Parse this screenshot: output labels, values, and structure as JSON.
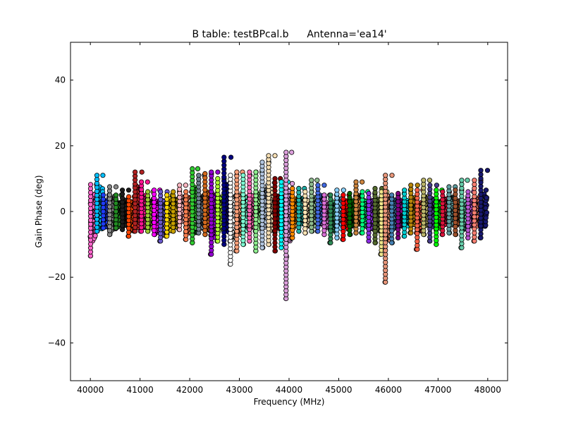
{
  "chart_data": {
    "type": "scatter",
    "title": "B table: testBPcal.b",
    "subtitle": "Antenna='ea14'",
    "xlabel": "Frequency (MHz)",
    "ylabel": "Gain Phase (deg)",
    "xlim": [
      39600,
      48400
    ],
    "ylim": [
      -51.5,
      51.5
    ],
    "grid": false,
    "xticks": [
      40000,
      41000,
      42000,
      43000,
      44000,
      45000,
      46000,
      47000,
      48000
    ],
    "xtick_labels": [
      "40000",
      "41000",
      "42000",
      "43000",
      "44000",
      "45000",
      "46000",
      "47000",
      "48000"
    ],
    "yticks": [
      -40,
      -20,
      0,
      20,
      40
    ],
    "ytick_labels": [
      "−40",
      "−20",
      "0",
      "20",
      "40"
    ],
    "marker": "circle",
    "marker_edge_color": "#000000",
    "spw_start": 40000,
    "spw_width": 128,
    "spw_count": 63,
    "channels_per_spw": 64,
    "series_colors": [
      "#ff66cc",
      "#00bfff",
      "#1e3cff",
      "#8b8b8b",
      "#228b22",
      "#1c1c1c",
      "#ff4500",
      "#b22222",
      "#ff1493",
      "#9acd32",
      "#ff00ff",
      "#6a5acd",
      "#ffd700",
      "#c8a000",
      "#ffb6c1",
      "#ff7f50",
      "#32cd32",
      "#708090",
      "#d2691e",
      "#9400d3",
      "#adff2f",
      "#000080",
      "#ffffff",
      "#ffa07a",
      "#7fffd4",
      "#ff69b4",
      "#90ee90",
      "#b0c4de",
      "#f5deb3",
      "#800000",
      "#00ffff",
      "#dda0dd",
      "#ff8c00",
      "#20b2aa",
      "#ffe4b5",
      "#8fbc8f",
      "#4169e1",
      "#da70d6",
      "#2e8b57",
      "#87cefa",
      "#ff0000",
      "#006400",
      "#cd853f",
      "#00ff7f",
      "#8a2be2",
      "#556b2f",
      "#f0e68c",
      "#e9967a",
      "#4682b4",
      "#800080",
      "#00ced1",
      "#b8860b",
      "#ff6347",
      "#bdb76b",
      "#483d8b",
      "#00ff00",
      "#dc143c",
      "#5f9ea0",
      "#a0522d",
      "#66cdaa",
      "#ba55d3",
      "#fa8072",
      "#191970"
    ],
    "series": [
      {
        "x_center": 40064,
        "y_center": -1.8,
        "y_spread": 7.2,
        "peak_low": -13.5,
        "peak_high": 8.2
      },
      {
        "x_center": 40192,
        "y_center": 1.0,
        "y_spread": 6.5,
        "peak_low": -6.0,
        "peak_high": 11.0
      },
      {
        "x_center": 40320,
        "y_center": -0.5,
        "y_spread": 4.5,
        "peak_low": -5.0,
        "peak_high": 5.0
      },
      {
        "x_center": 40448,
        "y_center": -0.8,
        "y_spread": 5.5,
        "peak_low": -7.0,
        "peak_high": 7.5
      },
      {
        "x_center": 40576,
        "y_center": -1.0,
        "y_spread": 3.8,
        "peak_low": -5.0,
        "peak_high": 5.0
      },
      {
        "x_center": 40704,
        "y_center": -0.5,
        "y_spread": 4.0,
        "peak_low": -5.5,
        "peak_high": 6.5
      },
      {
        "x_center": 40832,
        "y_center": -1.5,
        "y_spread": 4.5,
        "peak_low": -7.5,
        "peak_high": 4.5
      },
      {
        "x_center": 40960,
        "y_center": 1.5,
        "y_spread": 6.5,
        "peak_low": -6.0,
        "peak_high": 12.0
      },
      {
        "x_center": 41088,
        "y_center": 0.0,
        "y_spread": 5.0,
        "peak_low": -6.0,
        "peak_high": 9.0
      },
      {
        "x_center": 41216,
        "y_center": -0.5,
        "y_spread": 4.5,
        "peak_low": -6.0,
        "peak_high": 6.0
      },
      {
        "x_center": 41344,
        "y_center": -1.5,
        "y_spread": 5.0,
        "peak_low": -7.0,
        "peak_high": 6.5
      },
      {
        "x_center": 41472,
        "y_center": -2.0,
        "y_spread": 5.5,
        "peak_low": -9.0,
        "peak_high": 6.0
      },
      {
        "x_center": 41600,
        "y_center": -1.0,
        "y_spread": 5.0,
        "peak_low": -7.5,
        "peak_high": 5.0
      },
      {
        "x_center": 41728,
        "y_center": -0.5,
        "y_spread": 4.5,
        "peak_low": -6.0,
        "peak_high": 6.0
      },
      {
        "x_center": 41856,
        "y_center": 0.5,
        "y_spread": 4.0,
        "peak_low": -5.5,
        "peak_high": 8.0
      },
      {
        "x_center": 41984,
        "y_center": -1.0,
        "y_spread": 5.5,
        "peak_low": -8.5,
        "peak_high": 6.0
      },
      {
        "x_center": 42112,
        "y_center": 0.5,
        "y_spread": 7.0,
        "peak_low": -9.5,
        "peak_high": 13.0
      },
      {
        "x_center": 42240,
        "y_center": -0.5,
        "y_spread": 5.5,
        "peak_low": -6.5,
        "peak_high": 11.0
      },
      {
        "x_center": 42368,
        "y_center": 0.0,
        "y_spread": 6.0,
        "peak_low": -7.0,
        "peak_high": 11.5
      },
      {
        "x_center": 42496,
        "y_center": -1.5,
        "y_spread": 6.5,
        "peak_low": -13.0,
        "peak_high": 12.0
      },
      {
        "x_center": 42624,
        "y_center": -0.5,
        "y_spread": 5.5,
        "peak_low": -9.0,
        "peak_high": 10.0
      },
      {
        "x_center": 42752,
        "y_center": 1.0,
        "y_spread": 7.5,
        "peak_low": -10.0,
        "peak_high": 16.5
      },
      {
        "x_center": 42880,
        "y_center": -2.0,
        "y_spread": 7.0,
        "peak_low": -16.0,
        "peak_high": 11.0
      },
      {
        "x_center": 43008,
        "y_center": -1.0,
        "y_spread": 6.0,
        "peak_low": -12.0,
        "peak_high": 12.0
      },
      {
        "x_center": 43136,
        "y_center": -0.5,
        "y_spread": 5.5,
        "peak_low": -10.0,
        "peak_high": 11.0
      },
      {
        "x_center": 43264,
        "y_center": 0.0,
        "y_spread": 5.0,
        "peak_low": -9.0,
        "peak_high": 12.0
      },
      {
        "x_center": 43392,
        "y_center": 0.0,
        "y_spread": 5.5,
        "peak_low": -12.0,
        "peak_high": 12.0
      },
      {
        "x_center": 43520,
        "y_center": 1.0,
        "y_spread": 6.0,
        "peak_low": -11.0,
        "peak_high": 15.0
      },
      {
        "x_center": 43648,
        "y_center": 0.5,
        "y_spread": 6.5,
        "peak_low": -10.0,
        "peak_high": 17.0
      },
      {
        "x_center": 43776,
        "y_center": -0.5,
        "y_spread": 5.5,
        "peak_low": -12.0,
        "peak_high": 10.0
      },
      {
        "x_center": 43904,
        "y_center": -1.0,
        "y_spread": 5.0,
        "peak_low": -11.0,
        "peak_high": 9.0
      },
      {
        "x_center": 44000,
        "y_center": -1.0,
        "y_spread": 8.0,
        "peak_low": -26.5,
        "peak_high": 18.0
      },
      {
        "x_center": 44128,
        "y_center": -0.5,
        "y_spread": 4.5,
        "peak_low": -8.0,
        "peak_high": 7.0
      },
      {
        "x_center": 44256,
        "y_center": 0.0,
        "y_spread": 4.0,
        "peak_low": -6.0,
        "peak_high": 7.0
      },
      {
        "x_center": 44384,
        "y_center": -0.5,
        "y_spread": 4.0,
        "peak_low": -6.5,
        "peak_high": 6.0
      },
      {
        "x_center": 44512,
        "y_center": 0.0,
        "y_spread": 4.5,
        "peak_low": -6.0,
        "peak_high": 9.5
      },
      {
        "x_center": 44640,
        "y_center": 0.5,
        "y_spread": 4.5,
        "peak_low": -6.0,
        "peak_high": 8.0
      },
      {
        "x_center": 44768,
        "y_center": -1.0,
        "y_spread": 4.0,
        "peak_low": -7.0,
        "peak_high": 5.0
      },
      {
        "x_center": 44896,
        "y_center": -1.5,
        "y_spread": 4.5,
        "peak_low": -9.5,
        "peak_high": 5.0
      },
      {
        "x_center": 45024,
        "y_center": -0.5,
        "y_spread": 4.5,
        "peak_low": -8.0,
        "peak_high": 6.5
      },
      {
        "x_center": 45152,
        "y_center": -1.0,
        "y_spread": 4.5,
        "peak_low": -8.5,
        "peak_high": 5.0
      },
      {
        "x_center": 45280,
        "y_center": -0.5,
        "y_spread": 4.0,
        "peak_low": -7.0,
        "peak_high": 5.5
      },
      {
        "x_center": 45408,
        "y_center": 0.5,
        "y_spread": 4.5,
        "peak_low": -6.5,
        "peak_high": 9.0
      },
      {
        "x_center": 45536,
        "y_center": -0.5,
        "y_spread": 4.0,
        "peak_low": -6.5,
        "peak_high": 6.0
      },
      {
        "x_center": 45664,
        "y_center": -1.0,
        "y_spread": 4.5,
        "peak_low": -9.0,
        "peak_high": 5.5
      },
      {
        "x_center": 45792,
        "y_center": -1.0,
        "y_spread": 5.0,
        "peak_low": -9.5,
        "peak_high": 7.0
      },
      {
        "x_center": 45920,
        "y_center": -2.0,
        "y_spread": 5.5,
        "peak_low": -13.0,
        "peak_high": 6.0
      },
      {
        "x_center": 46000,
        "y_center": -2.0,
        "y_spread": 7.0,
        "peak_low": -21.5,
        "peak_high": 11.0
      },
      {
        "x_center": 46128,
        "y_center": -1.0,
        "y_spread": 4.5,
        "peak_low": -9.5,
        "peak_high": 5.0
      },
      {
        "x_center": 46256,
        "y_center": -0.5,
        "y_spread": 4.0,
        "peak_low": -8.0,
        "peak_high": 5.5
      },
      {
        "x_center": 46384,
        "y_center": -0.5,
        "y_spread": 4.0,
        "peak_low": -7.5,
        "peak_high": 6.5
      },
      {
        "x_center": 46512,
        "y_center": 0.0,
        "y_spread": 4.5,
        "peak_low": -6.5,
        "peak_high": 8.0
      },
      {
        "x_center": 46640,
        "y_center": -1.5,
        "y_spread": 4.5,
        "peak_low": -11.5,
        "peak_high": 6.5
      },
      {
        "x_center": 46768,
        "y_center": 0.0,
        "y_spread": 4.5,
        "peak_low": -7.0,
        "peak_high": 9.5
      },
      {
        "x_center": 46896,
        "y_center": -0.5,
        "y_spread": 4.5,
        "peak_low": -9.0,
        "peak_high": 8.0
      },
      {
        "x_center": 47024,
        "y_center": -1.0,
        "y_spread": 4.5,
        "peak_low": -10.0,
        "peak_high": 6.5
      },
      {
        "x_center": 47152,
        "y_center": 0.0,
        "y_spread": 4.0,
        "peak_low": -7.0,
        "peak_high": 6.0
      },
      {
        "x_center": 47280,
        "y_center": 0.0,
        "y_spread": 4.5,
        "peak_low": -6.5,
        "peak_high": 7.5
      },
      {
        "x_center": 47408,
        "y_center": -0.5,
        "y_spread": 4.0,
        "peak_low": -7.0,
        "peak_high": 6.5
      },
      {
        "x_center": 47536,
        "y_center": -1.0,
        "y_spread": 4.5,
        "peak_low": -11.0,
        "peak_high": 9.5
      },
      {
        "x_center": 47664,
        "y_center": -0.5,
        "y_spread": 4.0,
        "peak_low": -8.0,
        "peak_high": 6.0
      },
      {
        "x_center": 47792,
        "y_center": 0.0,
        "y_spread": 4.5,
        "peak_low": -9.0,
        "peak_high": 9.5
      },
      {
        "x_center": 47920,
        "y_center": 0.5,
        "y_spread": 5.0,
        "peak_low": -8.0,
        "peak_high": 12.5
      }
    ]
  }
}
